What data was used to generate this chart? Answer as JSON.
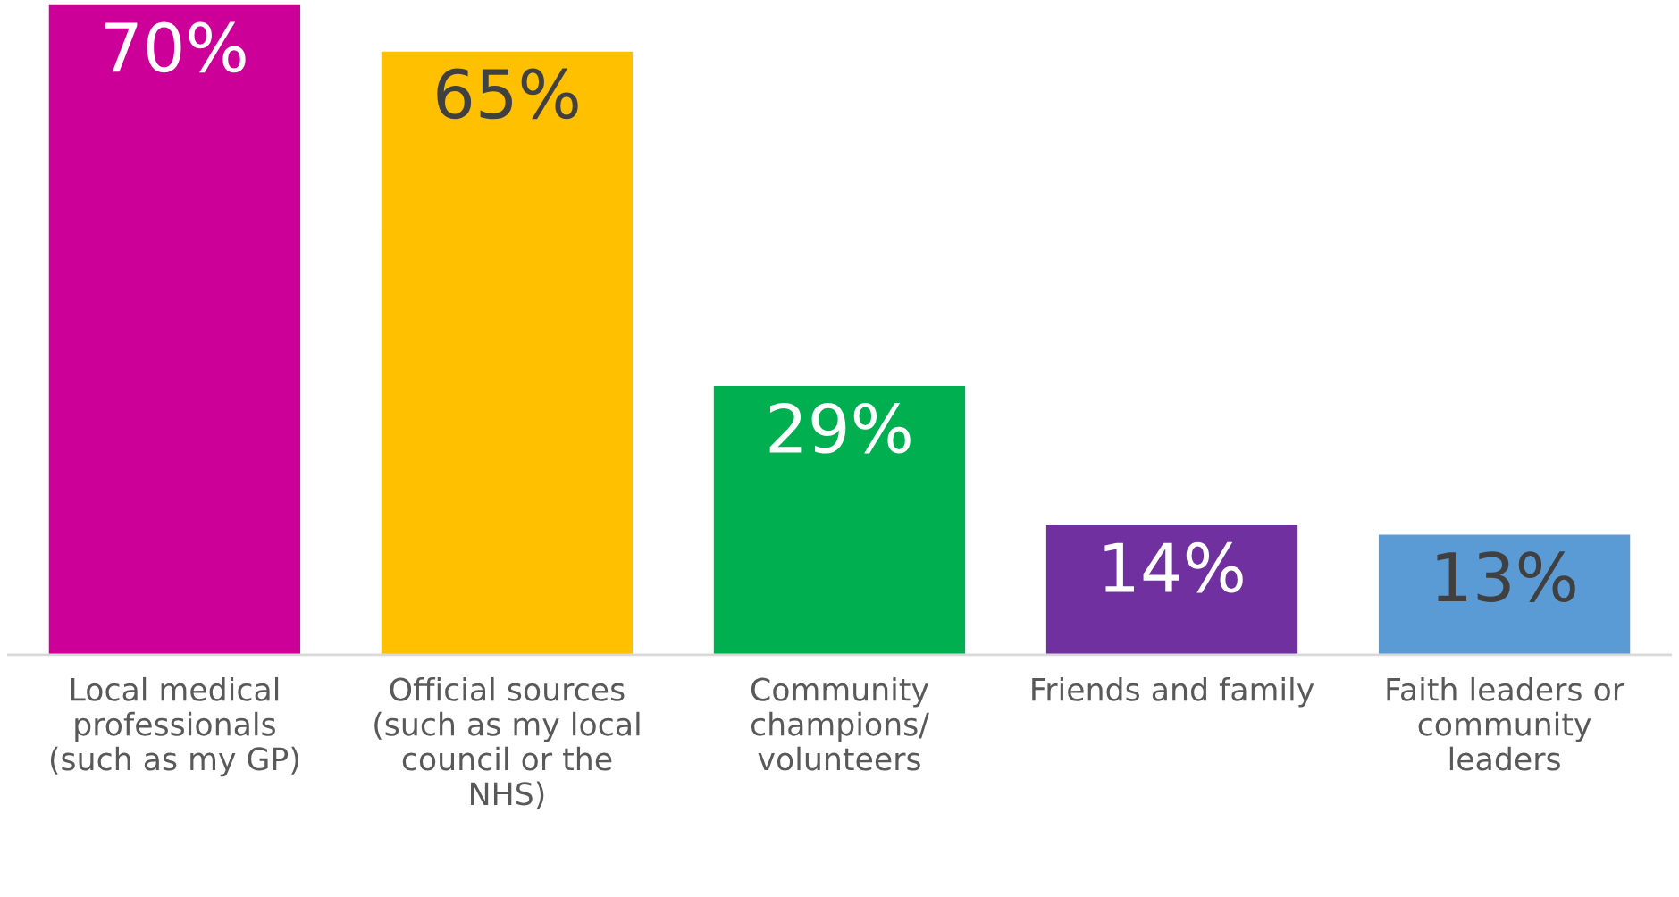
{
  "chart_data": {
    "type": "bar",
    "categories": [
      "Local medical\nprofessionals\n(such as my GP)",
      "Official sources\n(such as my local\ncouncil or the\nNHS)",
      "Community\nchampions/\nvolunteers",
      "Friends and family",
      "Faith leaders or\ncommunity\nleaders"
    ],
    "values": [
      70,
      65,
      29,
      14,
      13
    ],
    "colors": [
      "#cc0099",
      "#ffc000",
      "#00b050",
      "#7030a0",
      "#5b9bd5"
    ],
    "value_labels": [
      "70%",
      "65%",
      "29%",
      "14%",
      "13%"
    ],
    "grid": false
  }
}
